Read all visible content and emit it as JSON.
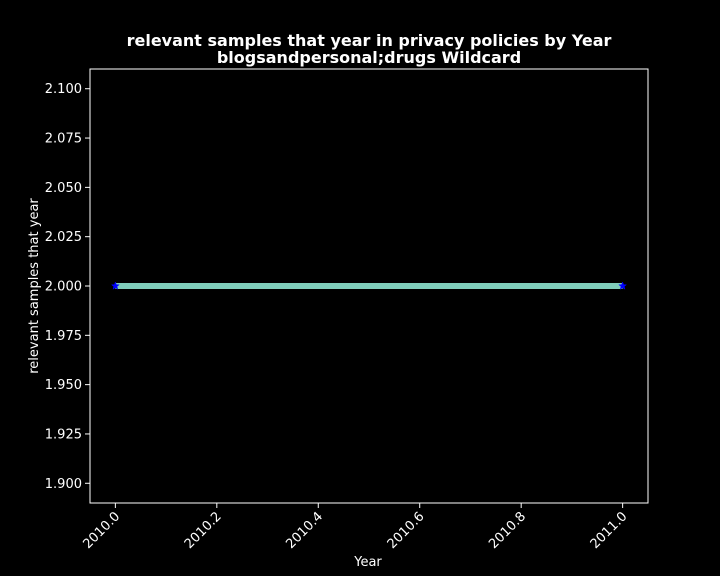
{
  "chart_data": {
    "type": "line",
    "title_line1": "relevant samples that year in privacy policies by Year",
    "title_line2": "blogsandpersonal;drugs Wildcard",
    "xlabel": "Year",
    "ylabel": "relevant samples that year",
    "xlim": [
      1999.95,
      2011.05
    ],
    "ylim": [
      1.89,
      2.11
    ],
    "x_ticks": [
      "2010.0",
      "2010.2",
      "2010.4",
      "2010.6",
      "2010.8",
      "2011.0"
    ],
    "x_tick_values": [
      2010.0,
      2010.2,
      2010.4,
      2010.6,
      2010.8,
      2011.0
    ],
    "y_ticks": [
      "1.900",
      "1.925",
      "1.950",
      "1.975",
      "2.000",
      "2.025",
      "2.050",
      "2.075",
      "2.100"
    ],
    "y_tick_values": [
      1.9,
      1.925,
      1.95,
      1.975,
      2.0,
      2.025,
      2.05,
      2.075,
      2.1
    ],
    "series": [
      {
        "x": [
          2010.0,
          2011.0
        ],
        "values": [
          2,
          2
        ],
        "line_color": "#7fcdbb",
        "marker": "star",
        "marker_color": "#0000ff"
      }
    ],
    "background": "#000000",
    "foreground": "#ffffff",
    "grid": false
  }
}
